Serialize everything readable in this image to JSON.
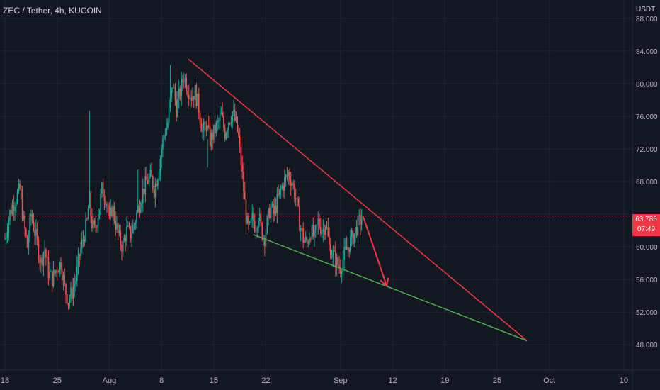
{
  "header": {
    "title": "ZEC / Tether, 4h, KUCOIN",
    "unit": "USDT"
  },
  "price_badge": {
    "price": "63.785",
    "countdown": "07:49"
  },
  "colors": {
    "background": "#131722",
    "grid": "#1f2433",
    "axis_text": "#b2b5be",
    "up": "#26a69a",
    "down": "#ef5350",
    "resistance_line": "#f23645",
    "support_line": "#4caf50",
    "arrow": "#f23645"
  },
  "chart_data": {
    "type": "candlestick",
    "interval": "4h",
    "symbol": "ZEC / Tether",
    "exchange": "KUCOIN",
    "y_axis": {
      "unit": "USDT",
      "ticks": [
        "88.000",
        "84.000",
        "80.000",
        "76.000",
        "72.000",
        "68.000",
        "60.000",
        "56.000",
        "52.000",
        "48.000"
      ],
      "tick_values": [
        88,
        84,
        80,
        76,
        72,
        68,
        60,
        56,
        52,
        48
      ],
      "range": [
        45.6,
        89.5
      ]
    },
    "x_axis": {
      "ticks": [
        "18",
        "25",
        "Aug",
        "8",
        "15",
        "22",
        "Sep",
        "12",
        "19",
        "25",
        "Oct",
        "10"
      ],
      "tick_days": [
        0,
        7,
        14,
        21,
        28,
        35,
        45,
        52,
        59,
        66,
        73,
        83
      ],
      "range_days": [
        0,
        83
      ]
    },
    "current_price": 63.785,
    "price_path": [
      [
        0,
        61
      ],
      [
        0.6,
        64
      ],
      [
        1.2,
        65.5
      ],
      [
        2.0,
        67
      ],
      [
        2.5,
        63
      ],
      [
        3.0,
        60
      ],
      [
        3.5,
        64
      ],
      [
        4.2,
        61
      ],
      [
        4.8,
        58
      ],
      [
        5.3,
        60
      ],
      [
        5.8,
        57
      ],
      [
        6.3,
        56
      ],
      [
        7.0,
        57.5
      ],
      [
        7.5,
        58
      ],
      [
        8.0,
        55
      ],
      [
        8.5,
        53.5
      ],
      [
        9.0,
        54.5
      ],
      [
        9.5,
        56
      ],
      [
        10.0,
        59
      ],
      [
        10.5,
        61
      ],
      [
        11.0,
        63
      ],
      [
        11.3,
        66
      ],
      [
        11.6,
        63
      ],
      [
        12.0,
        62
      ],
      [
        12.5,
        64
      ],
      [
        13.0,
        67
      ],
      [
        13.6,
        66
      ],
      [
        14.0,
        63
      ],
      [
        14.4,
        65
      ],
      [
        14.8,
        63
      ],
      [
        15.3,
        61
      ],
      [
        15.8,
        60
      ],
      [
        16.3,
        62
      ],
      [
        16.8,
        61.5
      ],
      [
        17.4,
        63
      ],
      [
        17.9,
        65
      ],
      [
        18.4,
        66.5
      ],
      [
        19.0,
        68
      ],
      [
        19.6,
        68.5
      ],
      [
        20.0,
        67
      ],
      [
        20.5,
        69
      ],
      [
        21.0,
        72
      ],
      [
        21.4,
        74
      ],
      [
        21.8,
        75
      ],
      [
        22.2,
        78
      ],
      [
        22.5,
        80
      ],
      [
        23.0,
        77
      ],
      [
        23.5,
        79
      ],
      [
        24.0,
        81
      ],
      [
        24.5,
        79.5
      ],
      [
        25.0,
        78.5
      ],
      [
        25.5,
        79
      ],
      [
        26.0,
        77
      ],
      [
        26.5,
        74
      ],
      [
        27.0,
        75
      ],
      [
        27.5,
        73
      ],
      [
        28.0,
        74
      ],
      [
        28.5,
        75
      ],
      [
        29.0,
        76
      ],
      [
        29.5,
        74
      ],
      [
        30.0,
        75.5
      ],
      [
        30.5,
        76.5
      ],
      [
        31.0,
        75
      ],
      [
        31.4,
        73
      ],
      [
        31.7,
        70
      ],
      [
        32.1,
        66
      ],
      [
        32.4,
        63
      ],
      [
        32.8,
        62
      ],
      [
        33.2,
        63.5
      ],
      [
        33.6,
        62.5
      ],
      [
        34.0,
        64
      ],
      [
        34.4,
        62
      ],
      [
        34.8,
        61
      ],
      [
        35.2,
        63
      ],
      [
        35.6,
        65
      ],
      [
        36.0,
        64
      ],
      [
        36.5,
        65.5
      ],
      [
        37.0,
        67
      ],
      [
        37.5,
        68
      ],
      [
        38.0,
        69
      ],
      [
        38.5,
        68
      ],
      [
        39.0,
        66
      ],
      [
        39.5,
        63
      ],
      [
        40.0,
        61
      ],
      [
        40.5,
        60.5
      ],
      [
        41.0,
        62
      ],
      [
        41.5,
        61
      ],
      [
        42.0,
        63
      ],
      [
        42.6,
        62
      ],
      [
        43.0,
        63
      ],
      [
        43.5,
        60
      ],
      [
        44.0,
        59
      ],
      [
        44.5,
        58
      ],
      [
        45.0,
        57.5
      ],
      [
        45.5,
        59
      ],
      [
        46.0,
        60
      ],
      [
        46.5,
        61
      ],
      [
        47.0,
        62
      ],
      [
        47.5,
        63
      ],
      [
        48.0,
        63.8
      ]
    ],
    "drawings": {
      "resistance_line": {
        "start": [
          24.6,
          83
        ],
        "end": [
          70.0,
          48.5
        ]
      },
      "support_line": {
        "start": [
          33.3,
          61.5
        ],
        "end": [
          70.0,
          48.5
        ]
      },
      "projection_arrow": {
        "start": [
          48.0,
          63.8
        ],
        "end": [
          51.2,
          55.2
        ]
      }
    },
    "current_price_line": "dotted",
    "grid": true
  }
}
